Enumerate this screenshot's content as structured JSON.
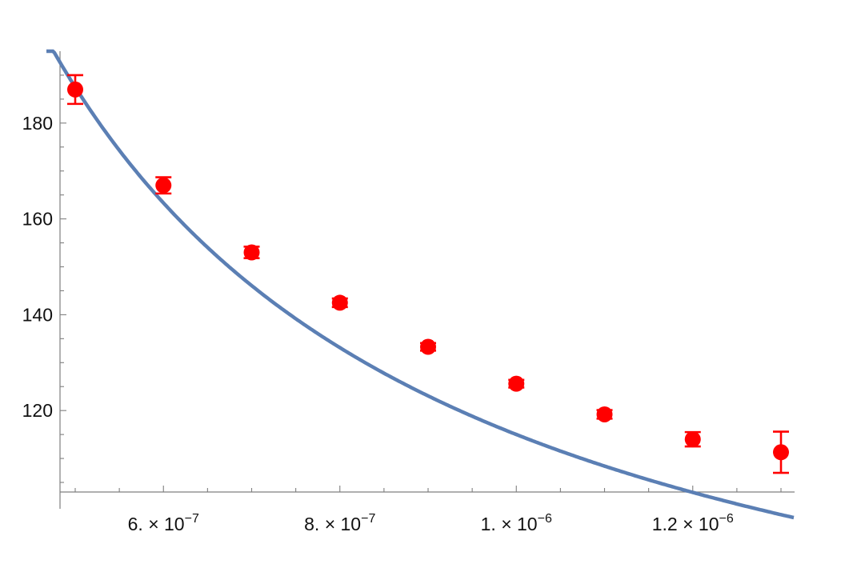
{
  "chart_data": {
    "type": "scatter",
    "title": "",
    "xlabel": "",
    "ylabel": "",
    "xlim": [
      5e-07,
      1.3e-06
    ],
    "ylim": [
      103,
      195
    ],
    "grid": false,
    "x_ticks": [
      {
        "value": 6e-07,
        "mantissa": "6. × 10",
        "exponent": "−7"
      },
      {
        "value": 8e-07,
        "mantissa": "8. × 10",
        "exponent": "−7"
      },
      {
        "value": 1e-06,
        "mantissa": "1. × 10",
        "exponent": "−6"
      },
      {
        "value": 1.2e-06,
        "mantissa": "1.2 × 10",
        "exponent": "−6"
      }
    ],
    "y_ticks": [
      {
        "value": 120,
        "label": "120"
      },
      {
        "value": 140,
        "label": "140"
      },
      {
        "value": 160,
        "label": "160"
      },
      {
        "value": 180,
        "label": "180"
      }
    ],
    "series": [
      {
        "kind": "points_with_error_bars",
        "color": "#ff0000",
        "x": [
          5e-07,
          6e-07,
          7e-07,
          8e-07,
          9e-07,
          1e-06,
          1.1e-06,
          1.2e-06,
          1.3e-06
        ],
        "y": [
          187.0,
          167.0,
          153.0,
          142.5,
          133.3,
          125.6,
          119.2,
          114.0,
          111.3
        ],
        "y_err": [
          3.0,
          1.7,
          1.2,
          0.9,
          0.8,
          0.8,
          0.9,
          1.5,
          4.3
        ]
      },
      {
        "kind": "fit_curve",
        "color": "#5b7fb4",
        "model": "a + b / x",
        "params": {
          "a": 42.5,
          "b": 7.25e-05
        }
      }
    ]
  }
}
